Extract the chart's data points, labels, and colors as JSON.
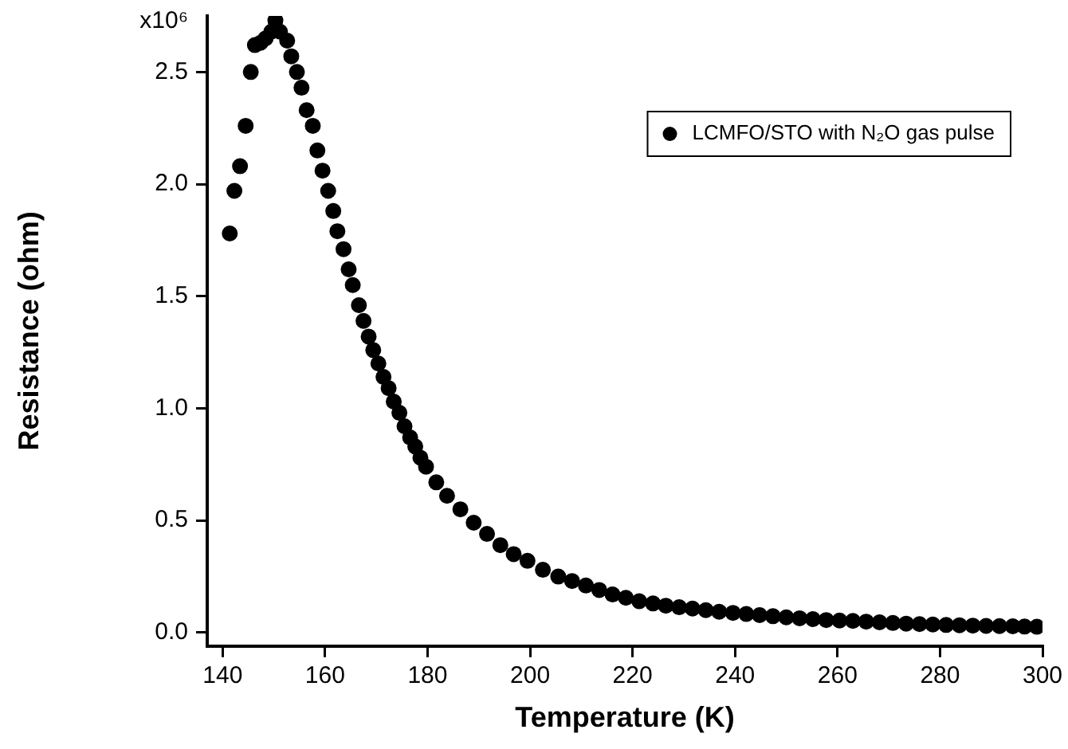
{
  "chart_data": {
    "type": "scatter",
    "xlabel": "Temperature (K)",
    "ylabel": "Resistance (ohm)",
    "xlim": [
      137,
      300
    ],
    "xticks": [
      140,
      160,
      180,
      200,
      220,
      240,
      260,
      280,
      300
    ],
    "ylim": [
      -0.06,
      2.75
    ],
    "yticks": [
      {
        "value": 0,
        "label": "0.0"
      },
      {
        "value": 0.5,
        "label": "0.5"
      },
      {
        "value": 1,
        "label": "1.0"
      },
      {
        "value": 1.5,
        "label": "1.5"
      },
      {
        "value": 2,
        "label": "2.0"
      },
      {
        "value": 2.5,
        "label": "2.5"
      }
    ],
    "annotations": [
      "x10⁶"
    ],
    "grid": false,
    "legend": "top right",
    "marker": "circle",
    "series": [
      {
        "name": "LCMFO/STO with N₂O gas pulse",
        "color": "#000000",
        "x": [
          141.4,
          142.3,
          143.4,
          144.5,
          145.5,
          146.3,
          147.4,
          148.4,
          149.5,
          150.3,
          151.2,
          152.6,
          153.4,
          154.5,
          155.4,
          156.4,
          157.6,
          158.5,
          159.5,
          160.6,
          161.6,
          162.4,
          163.6,
          164.6,
          165.4,
          166.6,
          167.5,
          168.5,
          169.4,
          170.4,
          171.4,
          172.4,
          173.4,
          174.5,
          175.5,
          176.6,
          177.6,
          178.6,
          179.7,
          181.7,
          183.8,
          186.4,
          189.0,
          191.6,
          194.2,
          196.8,
          199.5,
          202.5,
          205.5,
          208.2,
          210.9,
          213.5,
          216.1,
          218.7,
          221.3,
          224.0,
          226.5,
          229.1,
          231.7,
          234.3,
          236.9,
          239.6,
          242.2,
          244.8,
          247.4,
          250.0,
          252.6,
          255.2,
          257.8,
          260.4,
          263.0,
          265.6,
          268.2,
          270.8,
          273.4,
          276.0,
          278.6,
          281.2,
          283.8,
          286.4,
          289.0,
          291.6,
          294.2,
          296.5,
          298.9
        ],
        "values": [
          1.78,
          1.97,
          2.08,
          2.26,
          2.5,
          2.62,
          2.63,
          2.65,
          2.68,
          2.73,
          2.68,
          2.64,
          2.57,
          2.5,
          2.43,
          2.33,
          2.26,
          2.15,
          2.06,
          1.97,
          1.88,
          1.79,
          1.71,
          1.62,
          1.55,
          1.46,
          1.39,
          1.32,
          1.26,
          1.2,
          1.14,
          1.09,
          1.03,
          0.98,
          0.92,
          0.87,
          0.83,
          0.78,
          0.74,
          0.67,
          0.61,
          0.55,
          0.49,
          0.44,
          0.39,
          0.35,
          0.32,
          0.28,
          0.25,
          0.23,
          0.21,
          0.19,
          0.17,
          0.155,
          0.14,
          0.13,
          0.12,
          0.113,
          0.107,
          0.1,
          0.093,
          0.088,
          0.083,
          0.078,
          0.073,
          0.068,
          0.064,
          0.06,
          0.056,
          0.054,
          0.052,
          0.049,
          0.046,
          0.043,
          0.04,
          0.038,
          0.036,
          0.034,
          0.033,
          0.031,
          0.03,
          0.029,
          0.028,
          0.027,
          0.026
        ]
      }
    ]
  }
}
